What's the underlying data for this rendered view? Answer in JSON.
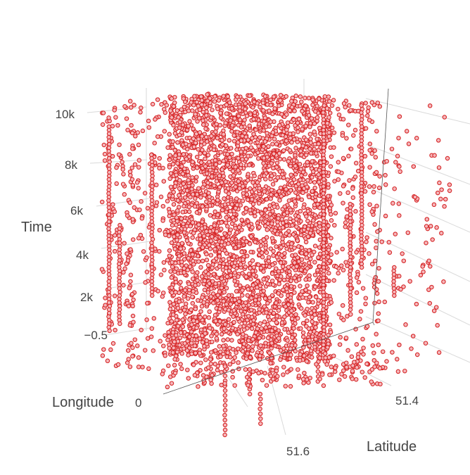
{
  "chart_data": {
    "type": "scatter3d",
    "marker": {
      "fill": "#f5b7bb",
      "stroke": "#d62728",
      "symbol": "circle-open"
    },
    "axes": {
      "x": {
        "title": "Longitude",
        "tick_labels": [
          "0"
        ]
      },
      "y": {
        "title": "Latitude",
        "tick_labels": [
          "51.4",
          "51.6"
        ]
      },
      "z": {
        "title": "Time",
        "tick_labels": [
          "10k",
          "8k",
          "6k",
          "4k",
          "2k",
          "−0.5"
        ],
        "range": [
          0,
          10500
        ]
      }
    },
    "series": [
      {
        "points": [
          {
            "lon": -0.12,
            "lat": 51.51,
            "time": 120
          },
          {
            "lon": -0.1,
            "lat": 51.5,
            "time": 850
          },
          {
            "lon": -0.14,
            "lat": 51.52,
            "time": 1600
          },
          {
            "lon": -0.08,
            "lat": 51.49,
            "time": 2300
          },
          {
            "lon": -0.13,
            "lat": 51.53,
            "time": 3100
          },
          {
            "lon": -0.11,
            "lat": 51.51,
            "time": 3900
          },
          {
            "lon": -0.09,
            "lat": 51.48,
            "time": 4700
          },
          {
            "lon": -0.15,
            "lat": 51.5,
            "time": 5400
          },
          {
            "lon": -0.12,
            "lat": 51.52,
            "time": 6200
          },
          {
            "lon": -0.1,
            "lat": 51.51,
            "time": 7000
          },
          {
            "lon": -0.13,
            "lat": 51.49,
            "time": 7800
          },
          {
            "lon": -0.11,
            "lat": 51.53,
            "time": 8600
          },
          {
            "lon": -0.09,
            "lat": 51.5,
            "time": 9300
          },
          {
            "lon": -0.12,
            "lat": 51.51,
            "time": 10100
          },
          {
            "lon": -0.2,
            "lat": 51.45,
            "time": 2000
          },
          {
            "lon": -0.05,
            "lat": 51.56,
            "time": 5000
          },
          {
            "lon": -0.18,
            "lat": 51.58,
            "time": 8000
          },
          {
            "lon": -0.03,
            "lat": 51.44,
            "time": 9500
          }
        ]
      }
    ]
  }
}
